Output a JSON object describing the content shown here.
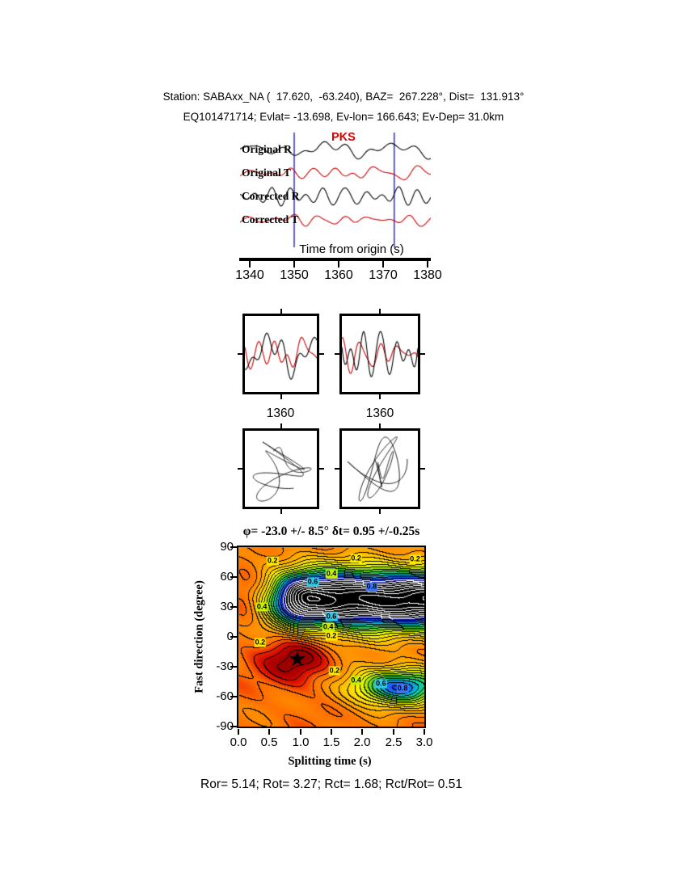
{
  "header": {
    "line1": "Station: SABAxx_NA (  17.620,  -63.240), BAZ=  267.228°, Dist=  131.913°",
    "line2": "EQ101471714; Evlat= -13.698, Ev-lon= 166.643; Ev-Dep= 31.0km"
  },
  "waveforms": {
    "phase_label": "PKS",
    "phase_color": "#dd0000",
    "traces": [
      {
        "label": "Original R",
        "color": "#000000",
        "amp": 12
      },
      {
        "label": "Original T",
        "color": "#cc0000",
        "amp": 9
      },
      {
        "label": "Corrected R",
        "color": "#000000",
        "amp": 12
      },
      {
        "label": "Corrected T",
        "color": "#cc0000",
        "amp": 8
      }
    ],
    "axis": {
      "label": "Time from origin (s)",
      "ticks": [
        1340,
        1350,
        1360,
        1370,
        1380
      ],
      "window": [
        1350,
        1372.5
      ],
      "window_color": "#3a3acd"
    }
  },
  "mini_panels": [
    {
      "name": "original windowed R+T",
      "tick_label": "1360"
    },
    {
      "name": "corrected windowed R+T",
      "tick_label": "1360"
    }
  ],
  "particle_panels": [
    {
      "name": "original particle motion"
    },
    {
      "name": "corrected particle motion"
    }
  ],
  "chart_data": {
    "type": "heatmap",
    "title": "φ= -23.0 +/- 8.5° δt= 0.95 +/-0.25s",
    "xlabel": "Splitting time (s)",
    "ylabel": "Fast direction (degree)",
    "xlim": [
      0.0,
      3.0
    ],
    "ylim": [
      -90,
      90
    ],
    "xticks": [
      0.0,
      0.5,
      1.0,
      1.5,
      2.0,
      2.5,
      3.0
    ],
    "yticks": [
      90,
      60,
      30,
      0,
      -30,
      -60,
      -90
    ],
    "xtick_labels": [
      "0.0",
      "0.5",
      "1.0",
      "1.5",
      "2.0",
      "2.5",
      "3.0"
    ],
    "ytick_labels": [
      "90",
      "60",
      "30",
      "0",
      "-30",
      "-60",
      "-90"
    ],
    "grid": false,
    "legend": "none",
    "best_solution": {
      "splitting_time": 0.95,
      "time_error": 0.25,
      "fast_direction": -23.0,
      "direction_error": 8.5
    },
    "star_glyph": "★",
    "star_color": "#000000",
    "colormap": "low=dark-red/orange, mid=yellow/green, high=cyan/blue/black",
    "contour_interval": 0.05,
    "contour_levels_labeled": [
      0.2,
      0.4,
      0.6,
      0.8
    ],
    "contour_labels": [
      {
        "text": "0.2",
        "t": 0.55,
        "phi": 76,
        "bg": "#ffe800"
      },
      {
        "text": "0.2",
        "t": 1.9,
        "phi": 79,
        "bg": "#ffe800"
      },
      {
        "text": "0.2",
        "t": 2.85,
        "phi": 78,
        "bg": "#ffe800"
      },
      {
        "text": "0.4",
        "t": 1.5,
        "phi": 63,
        "bg": "#c8f000"
      },
      {
        "text": "0.6",
        "t": 1.2,
        "phi": 55,
        "bg": "#32c8e6"
      },
      {
        "text": "0.8",
        "t": 2.15,
        "phi": 50,
        "bg": "#3c78ff"
      },
      {
        "text": "0.4",
        "t": 0.38,
        "phi": 30,
        "bg": "#c8f000"
      },
      {
        "text": "0.6",
        "t": 1.5,
        "phi": 20,
        "bg": "#32c8e6"
      },
      {
        "text": "0.4",
        "t": 1.45,
        "phi": 10,
        "bg": "#c8f000"
      },
      {
        "text": "0.2",
        "t": 1.5,
        "phi": 1,
        "bg": "#ffe800"
      },
      {
        "text": "0.2",
        "t": 0.35,
        "phi": -6,
        "bg": "#ffe800"
      },
      {
        "text": "0.2",
        "t": 1.55,
        "phi": -34,
        "bg": "#ffe800"
      },
      {
        "text": "0.4",
        "t": 1.9,
        "phi": -44,
        "bg": "#c8f000"
      },
      {
        "text": "0.6",
        "t": 2.3,
        "phi": -47,
        "bg": "#32c8e6"
      },
      {
        "text": "0.8",
        "t": 2.65,
        "phi": -52,
        "bg": "#3c78ff"
      }
    ]
  },
  "footer": {
    "text": "Ror= 5.14; Rot= 3.27; Rct= 1.68; Rct/Rot= 0.51"
  }
}
